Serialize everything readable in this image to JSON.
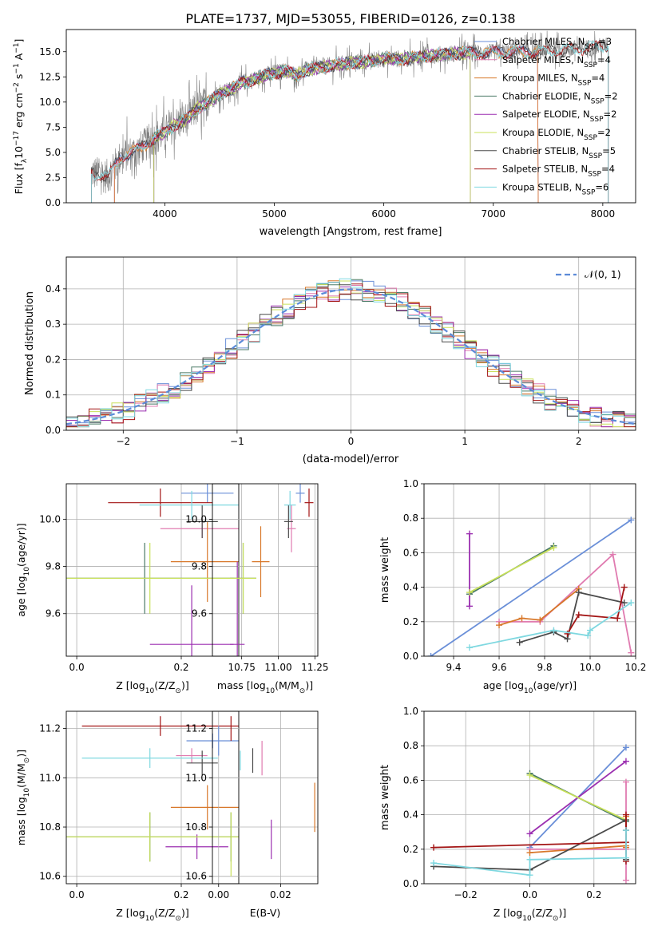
{
  "figure_title": "PLATE=1737, MJD=53055, FIBERID=0126, z=0.138",
  "colors": {
    "chabrier_miles": "#6a8fd8",
    "salpeter_miles": "#e07bb0",
    "kroupa_miles": "#d8782a",
    "chabrier_elodie": "#4a7a66",
    "salpeter_elodie": "#9b2fb0",
    "kroupa_elodie": "#c8e05a",
    "chabrier_stelib": "#4a4a4a",
    "salpeter_stelib": "#a31515",
    "kroupa_stelib": "#7fd8e0",
    "data": "#808080",
    "gaussian": "#5b8bd8",
    "grid": "#b0b0b0"
  },
  "legend_entries": [
    {
      "key": "chabrier_miles",
      "label": "Chabrier MILES, N",
      "sub": "SSP",
      "suffix": "=3"
    },
    {
      "key": "salpeter_miles",
      "label": "Salpeter MILES, N",
      "sub": "SSP",
      "suffix": "=4"
    },
    {
      "key": "kroupa_miles",
      "label": "Kroupa MILES, N",
      "sub": "SSP",
      "suffix": "=4"
    },
    {
      "key": "chabrier_elodie",
      "label": "Chabrier ELODIE, N",
      "sub": "SSP",
      "suffix": "=2"
    },
    {
      "key": "salpeter_elodie",
      "label": "Salpeter ELODIE, N",
      "sub": "SSP",
      "suffix": "=2"
    },
    {
      "key": "kroupa_elodie",
      "label": "Kroupa ELODIE, N",
      "sub": "SSP",
      "suffix": "=2"
    },
    {
      "key": "chabrier_stelib",
      "label": "Chabrier STELIB, N",
      "sub": "SSP",
      "suffix": "=5"
    },
    {
      "key": "salpeter_stelib",
      "label": "Salpeter STELIB, N",
      "sub": "SSP",
      "suffix": "=4"
    },
    {
      "key": "kroupa_stelib",
      "label": "Kroupa STELIB, N",
      "sub": "SSP",
      "suffix": "=6"
    }
  ],
  "chart_data": [
    {
      "id": "spectrum",
      "type": "line",
      "xlabel": "wavelength [Angstrom, rest frame]",
      "ylabel": "Flux [f",
      "ylabel_sub": "λ",
      "ylabel_rest": "10",
      "ylabel_sup1": "−17",
      "ylabel_mid": " erg cm",
      "ylabel_sup2": "−2",
      "ylabel_mid2": " s",
      "ylabel_sup3": "−1",
      "ylabel_mid3": " A",
      "ylabel_sup4": "−1",
      "ylabel_end": "]",
      "xlim": [
        3100,
        8300
      ],
      "ylim": [
        0,
        17.2
      ],
      "xticks": [
        "4000",
        "5000",
        "6000",
        "7000",
        "8000"
      ],
      "xtick_values": [
        4000,
        5000,
        6000,
        7000,
        8000
      ],
      "yticks": [
        "0.0",
        "2.5",
        "5.0",
        "7.5",
        "10.0",
        "12.5",
        "15.0"
      ],
      "ytick_values": [
        0,
        2.5,
        5,
        7.5,
        10,
        12.5,
        15
      ],
      "spectrum_anchors": [
        [
          3330,
          3.0
        ],
        [
          3480,
          2.6
        ],
        [
          3600,
          4.6
        ],
        [
          3750,
          5.2
        ],
        [
          3900,
          6.4
        ],
        [
          4000,
          7.0
        ],
        [
          4100,
          7.8
        ],
        [
          4200,
          8.3
        ],
        [
          4300,
          9.4
        ],
        [
          4400,
          10.0
        ],
        [
          4500,
          10.8
        ],
        [
          4600,
          11.2
        ],
        [
          4700,
          11.9
        ],
        [
          4800,
          12.2
        ],
        [
          4900,
          12.6
        ],
        [
          5000,
          12.9
        ],
        [
          5100,
          13.1
        ],
        [
          5200,
          12.7
        ],
        [
          5300,
          13.2
        ],
        [
          5500,
          13.6
        ],
        [
          5700,
          13.9
        ],
        [
          5900,
          14.1
        ],
        [
          6000,
          14.3
        ],
        [
          6200,
          14.3
        ],
        [
          6400,
          14.6
        ],
        [
          6600,
          14.8
        ],
        [
          6800,
          14.9
        ],
        [
          7000,
          14.9
        ],
        [
          7200,
          15.0
        ],
        [
          7400,
          15.0
        ],
        [
          7600,
          15.2
        ],
        [
          7800,
          15.3
        ],
        [
          8050,
          15.6
        ]
      ],
      "data_range": [
        3330,
        8050
      ],
      "model_ranges": {
        "chabrier_miles": [
          3540,
          7410
        ],
        "salpeter_miles": [
          3540,
          7410
        ],
        "kroupa_miles": [
          3540,
          7410
        ],
        "chabrier_elodie": [
          3900,
          6790
        ],
        "salpeter_elodie": [
          3900,
          6790
        ],
        "kroupa_elodie": [
          3900,
          6790
        ],
        "chabrier_stelib": [
          3330,
          8050
        ],
        "salpeter_stelib": [
          3330,
          8050
        ],
        "kroupa_stelib": [
          3330,
          8050
        ]
      }
    },
    {
      "id": "residual_histogram",
      "type": "histogram",
      "xlabel": "(data-model)/error",
      "ylabel": "Normed distribution",
      "xlim": [
        -2.5,
        2.5
      ],
      "ylim": [
        0,
        0.49
      ],
      "xticks": [
        "−2",
        "−1",
        "0",
        "1",
        "2"
      ],
      "xtick_values": [
        -2,
        -1,
        0,
        1,
        2
      ],
      "yticks": [
        "0.0",
        "0.1",
        "0.2",
        "0.3",
        "0.4"
      ],
      "ytick_values": [
        0,
        0.1,
        0.2,
        0.3,
        0.4
      ],
      "bin_width": 0.1,
      "legend_label": "𝒩(0, 1)"
    },
    {
      "id": "age_vs_Z",
      "type": "errorbar",
      "xlabel": "Z [log",
      "xlabel_sub": "10",
      "xlabel_rest": "(Z/Z",
      "xlabel_sub2": "⊙",
      "xlabel_end": ")]",
      "ylabel": "age  [log",
      "ylabel_sub": "10",
      "ylabel_rest": "(age/yr)]",
      "xlim": [
        -0.02,
        0.31
      ],
      "ylim": [
        9.42,
        10.15
      ],
      "xticks": [
        "0.0",
        "0.2"
      ],
      "xtick_values": [
        0,
        0.2
      ],
      "yticks": [
        "9.6",
        "9.8",
        "10.0"
      ],
      "ytick_values": [
        9.6,
        9.8,
        10.0
      ],
      "points": [
        {
          "key": "chabrier_miles",
          "x": 0.25,
          "xerr": 0.05,
          "y": 10.11,
          "yerr": 0.04
        },
        {
          "key": "salpeter_miles",
          "x": 0.24,
          "xerr": 0.08,
          "y": 9.96,
          "yerr": 0.04
        },
        {
          "key": "kroupa_miles",
          "x": 0.25,
          "xerr": 0.07,
          "y": 9.82,
          "yerr": 0.17
        },
        {
          "key": "chabrier_elodie",
          "x": 0.13,
          "xerr": 0.17,
          "y": 9.75,
          "yerr": 0.15
        },
        {
          "key": "salpeter_elodie",
          "x": 0.22,
          "xerr": 0.08,
          "y": 9.47,
          "yerr": 0.25
        },
        {
          "key": "kroupa_elodie",
          "x": 0.14,
          "xerr": 0.17,
          "y": 9.75,
          "yerr": 0.15
        },
        {
          "key": "chabrier_stelib",
          "x": 0.24,
          "xerr": 0.03,
          "y": 9.99,
          "yerr": 0.07
        },
        {
          "key": "salpeter_stelib",
          "x": 0.16,
          "xerr": 0.1,
          "y": 10.07,
          "yerr": 0.06
        },
        {
          "key": "kroupa_stelib",
          "x": 0.22,
          "xerr": 0.1,
          "y": 10.06,
          "yerr": 0.06
        }
      ]
    },
    {
      "id": "age_vs_mass",
      "type": "errorbar",
      "xlabel": "mass [log",
      "xlabel_sub": "10",
      "xlabel_rest": "(M/M",
      "xlabel_sub2": "⊙",
      "xlabel_end": ")]",
      "xlim": [
        10.55,
        11.27
      ],
      "ylim": [
        9.42,
        10.15
      ],
      "xticks": [
        "10.75",
        "11.00",
        "11.25"
      ],
      "xtick_values": [
        10.75,
        11.0,
        11.25
      ],
      "yticks": [
        "9.6",
        "9.8",
        "10.0"
      ],
      "ytick_values": [
        9.6,
        9.8,
        10.0
      ],
      "points": [
        {
          "key": "chabrier_miles",
          "x": 11.15,
          "xerr": 0.03,
          "y": 10.11,
          "yerr": 0.04
        },
        {
          "key": "salpeter_miles",
          "x": 11.09,
          "xerr": 0.03,
          "y": 9.96,
          "yerr": 0.1
        },
        {
          "key": "kroupa_miles",
          "x": 10.88,
          "xerr": 0.06,
          "y": 9.82,
          "yerr": 0.15
        },
        {
          "key": "chabrier_elodie",
          "x": 10.76,
          "xerr": 0.09,
          "y": 9.75,
          "yerr": 0.15
        },
        {
          "key": "salpeter_elodie",
          "x": 10.72,
          "xerr": 0.05,
          "y": 9.47,
          "yerr": 0.35
        },
        {
          "key": "kroupa_elodie",
          "x": 10.76,
          "xerr": 0.09,
          "y": 9.75,
          "yerr": 0.15
        },
        {
          "key": "chabrier_stelib",
          "x": 11.07,
          "xerr": 0.03,
          "y": 9.99,
          "yerr": 0.07
        },
        {
          "key": "salpeter_stelib",
          "x": 11.21,
          "xerr": 0.03,
          "y": 10.07,
          "yerr": 0.06
        },
        {
          "key": "kroupa_stelib",
          "x": 11.08,
          "xerr": 0.04,
          "y": 10.06,
          "yerr": 0.06
        }
      ]
    },
    {
      "id": "weight_vs_age",
      "type": "line",
      "xlabel": "age  [log",
      "xlabel_sub": "10",
      "xlabel_rest": "(age/yr)]",
      "ylabel": "mass weight",
      "xlim": [
        9.27,
        10.2
      ],
      "ylim": [
        0,
        1.0
      ],
      "xticks": [
        "9.4",
        "9.6",
        "9.8",
        "10.0",
        "10.2"
      ],
      "xtick_values": [
        9.4,
        9.6,
        9.8,
        10.0,
        10.2
      ],
      "yticks": [
        "0.0",
        "0.2",
        "0.4",
        "0.6",
        "0.8",
        "1.0"
      ],
      "ytick_values": [
        0,
        0.2,
        0.4,
        0.6,
        0.8,
        1.0
      ],
      "series": [
        {
          "key": "chabrier_miles",
          "x": [
            9.3,
            10.18
          ],
          "y": [
            0.0,
            0.79
          ]
        },
        {
          "key": "salpeter_miles",
          "x": [
            9.6,
            9.78,
            10.1,
            10.18
          ],
          "y": [
            0.2,
            0.2,
            0.59,
            0.02
          ]
        },
        {
          "key": "kroupa_miles",
          "x": [
            9.6,
            9.7,
            9.78,
            9.95
          ],
          "y": [
            0.18,
            0.22,
            0.21,
            0.39
          ]
        },
        {
          "key": "chabrier_elodie",
          "x": [
            9.47,
            9.84
          ],
          "y": [
            0.36,
            0.64
          ]
        },
        {
          "key": "salpeter_elodie",
          "x": [
            9.47,
            9.47
          ],
          "y": [
            0.29,
            0.71
          ]
        },
        {
          "key": "kroupa_elodie",
          "x": [
            9.47,
            9.84
          ],
          "y": [
            0.37,
            0.63
          ]
        },
        {
          "key": "chabrier_stelib",
          "x": [
            9.69,
            9.84,
            9.9,
            9.95,
            10.15
          ],
          "y": [
            0.08,
            0.14,
            0.1,
            0.37,
            0.31
          ]
        },
        {
          "key": "salpeter_stelib",
          "x": [
            9.9,
            9.95,
            10.12,
            10.15
          ],
          "y": [
            0.13,
            0.24,
            0.22,
            0.4
          ]
        },
        {
          "key": "kroupa_stelib",
          "x": [
            9.47,
            9.84,
            9.99,
            10.0,
            10.18
          ],
          "y": [
            0.05,
            0.15,
            0.12,
            0.15,
            0.31
          ]
        }
      ]
    },
    {
      "id": "mass_vs_Z",
      "type": "errorbar",
      "xlabel": "Z [log",
      "xlabel_sub": "10",
      "xlabel_rest": "(Z/Z",
      "xlabel_sub2": "⊙",
      "xlabel_end": ")]",
      "ylabel": "mass [log",
      "ylabel_sub": "10",
      "ylabel_rest": "(M/M",
      "ylabel_sub2": "⊙",
      "ylabel_end": ")]",
      "xlim": [
        -0.02,
        0.31
      ],
      "ylim": [
        10.57,
        11.27
      ],
      "xticks": [
        "0.0",
        "0.2"
      ],
      "xtick_values": [
        0,
        0.2
      ],
      "yticks": [
        "10.6",
        "10.8",
        "11.0",
        "11.2"
      ],
      "ytick_values": [
        10.6,
        10.8,
        11.0,
        11.2
      ],
      "points": [
        {
          "key": "chabrier_miles",
          "x": 0.26,
          "xerr": 0.05,
          "y": 11.15,
          "yerr": 0.03
        },
        {
          "key": "salpeter_miles",
          "x": 0.22,
          "xerr": 0.03,
          "y": 11.09,
          "yerr": 0.03
        },
        {
          "key": "kroupa_miles",
          "x": 0.25,
          "xerr": 0.07,
          "y": 10.88,
          "yerr": 0.09
        },
        {
          "key": "chabrier_elodie",
          "x": 0.14,
          "xerr": 0.17,
          "y": 10.76,
          "yerr": 0.1
        },
        {
          "key": "salpeter_elodie",
          "x": 0.23,
          "xerr": 0.06,
          "y": 10.72,
          "yerr": 0.05
        },
        {
          "key": "kroupa_elodie",
          "x": 0.14,
          "xerr": 0.17,
          "y": 10.76,
          "yerr": 0.1
        },
        {
          "key": "chabrier_stelib",
          "x": 0.24,
          "xerr": 0.03,
          "y": 11.06,
          "yerr": 0.05
        },
        {
          "key": "salpeter_stelib",
          "x": 0.16,
          "xerr": 0.15,
          "y": 11.21,
          "yerr": 0.04
        },
        {
          "key": "kroupa_stelib",
          "x": 0.14,
          "xerr": 0.13,
          "y": 11.08,
          "yerr": 0.04
        }
      ]
    },
    {
      "id": "mass_vs_ebv",
      "type": "errorbar",
      "xlabel": "E(B-V)",
      "xlim": [
        -0.002,
        0.032
      ],
      "ylim": [
        10.57,
        11.27
      ],
      "xticks": [
        "0.00",
        "0.02"
      ],
      "xtick_values": [
        0,
        0.02
      ],
      "yticks": [
        "10.6",
        "10.8",
        "11.0",
        "11.2"
      ],
      "ytick_values": [
        10.6,
        10.8,
        11.0,
        11.2
      ],
      "points": [
        {
          "key": "chabrier_miles",
          "x": 0.0,
          "y": 11.15,
          "yerr": 0.06
        },
        {
          "key": "salpeter_miles",
          "x": 0.014,
          "y": 11.08,
          "yerr": 0.07
        },
        {
          "key": "kroupa_miles",
          "x": 0.031,
          "y": 10.88,
          "yerr": 0.1
        },
        {
          "key": "chabrier_elodie",
          "x": 0.004,
          "y": 10.76,
          "yerr": 0.1
        },
        {
          "key": "salpeter_elodie",
          "x": 0.017,
          "y": 10.75,
          "yerr": 0.08
        },
        {
          "key": "kroupa_elodie",
          "x": 0.004,
          "y": 10.73,
          "yerr": 0.13
        },
        {
          "key": "chabrier_stelib",
          "x": 0.011,
          "y": 11.07,
          "yerr": 0.05
        },
        {
          "key": "salpeter_stelib",
          "x": 0.004,
          "y": 11.2,
          "yerr": 0.05
        },
        {
          "key": "kroupa_stelib",
          "x": 0.007,
          "y": 11.07,
          "yerr": 0.04
        }
      ]
    },
    {
      "id": "weight_vs_Z",
      "type": "line",
      "xlabel": "Z [log",
      "xlabel_sub": "10",
      "xlabel_rest": "(Z/Z",
      "xlabel_sub2": "⊙",
      "xlabel_end": ")]",
      "ylabel": "mass weight",
      "xlim": [
        -0.33,
        0.33
      ],
      "ylim": [
        0,
        1.0
      ],
      "xticks": [
        "−0.2",
        "0.0",
        "0.2"
      ],
      "xtick_values": [
        -0.2,
        0.0,
        0.2
      ],
      "yticks": [
        "0.0",
        "0.2",
        "0.4",
        "0.6",
        "0.8",
        "1.0"
      ],
      "ytick_values": [
        0,
        0.2,
        0.4,
        0.6,
        0.8,
        1.0
      ],
      "series": [
        {
          "key": "chabrier_miles",
          "x": [
            0.0,
            0.3
          ],
          "y": [
            0.21,
            0.79
          ]
        },
        {
          "key": "salpeter_miles",
          "x": [
            0.0,
            0.3,
            0.3,
            0.3
          ],
          "y": [
            0.2,
            0.2,
            0.59,
            0.02
          ]
        },
        {
          "key": "kroupa_miles",
          "x": [
            0.0,
            0.3,
            0.3,
            0.3
          ],
          "y": [
            0.18,
            0.22,
            0.21,
            0.39
          ]
        },
        {
          "key": "chabrier_elodie",
          "x": [
            0.0,
            0.3
          ],
          "y": [
            0.64,
            0.36
          ]
        },
        {
          "key": "salpeter_elodie",
          "x": [
            0.0,
            0.3
          ],
          "y": [
            0.29,
            0.71
          ]
        },
        {
          "key": "kroupa_elodie",
          "x": [
            0.0,
            0.3
          ],
          "y": [
            0.63,
            0.37
          ]
        },
        {
          "key": "chabrier_stelib",
          "x": [
            -0.3,
            0.0,
            0.3,
            0.3,
            0.3
          ],
          "y": [
            0.1,
            0.08,
            0.37,
            0.31,
            0.14
          ]
        },
        {
          "key": "salpeter_stelib",
          "x": [
            -0.3,
            0.3,
            0.3,
            0.3
          ],
          "y": [
            0.21,
            0.24,
            0.4,
            0.13
          ]
        },
        {
          "key": "kroupa_stelib",
          "x": [
            -0.3,
            0.0,
            0.0,
            0.3,
            0.3
          ],
          "y": [
            0.12,
            0.05,
            0.14,
            0.15,
            0.31
          ]
        }
      ]
    }
  ]
}
